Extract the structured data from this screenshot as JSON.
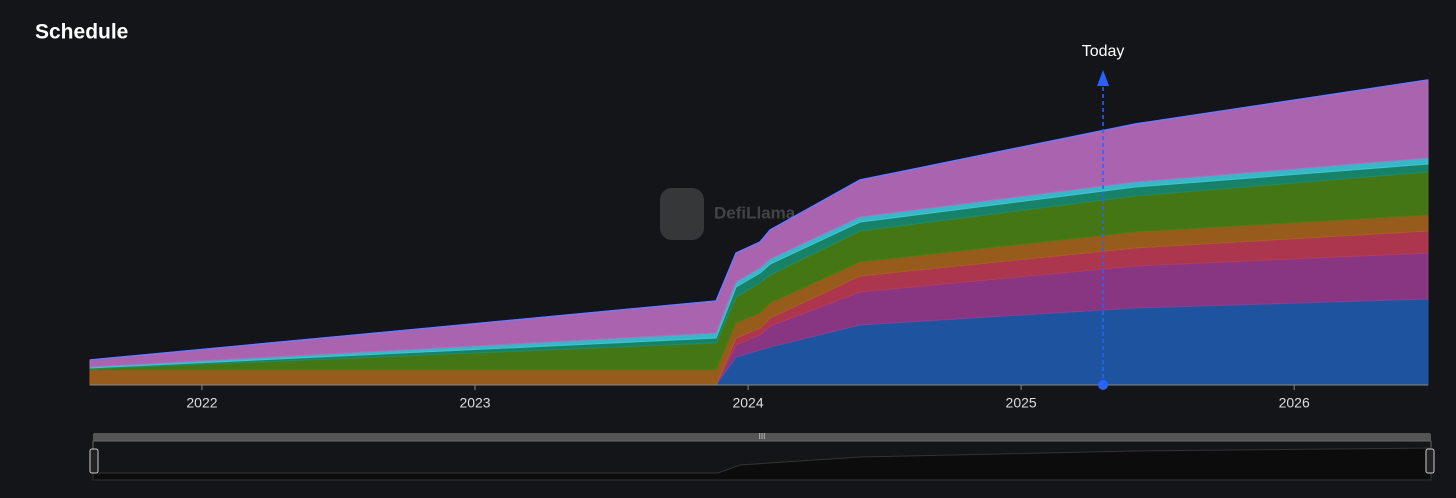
{
  "chart_data": {
    "type": "stacked-area",
    "title": "Schedule",
    "watermark": "DefiLlama",
    "x": [
      2021.59,
      2023.883,
      2023.956,
      2024.044,
      2024.081,
      2024.41,
      2025.418,
      2026.49
    ],
    "xlim": [
      2021.59,
      2026.49
    ],
    "xticks": [
      2022,
      2023,
      2024,
      2025,
      2026
    ],
    "ylim": [
      0,
      320
    ],
    "today": {
      "value": 2025.3,
      "label": "Today"
    },
    "series": [
      {
        "color": "#2059ad",
        "values": [
          0,
          0,
          28,
          35,
          38,
          60,
          77,
          86
        ]
      },
      {
        "color": "#933a8b",
        "values": [
          0,
          0,
          12,
          15,
          21,
          33,
          42,
          46
        ]
      },
      {
        "color": "#b83a52",
        "values": [
          0,
          0,
          7,
          7,
          8,
          16,
          18,
          22
        ]
      },
      {
        "color": "#a3621c",
        "values": [
          15,
          15,
          15,
          15,
          15,
          14,
          16,
          16
        ]
      },
      {
        "color": "#4a7f15",
        "values": [
          1,
          27,
          26,
          30,
          28,
          31,
          36,
          43
        ]
      },
      {
        "color": "#198c70",
        "values": [
          1,
          5,
          10,
          10,
          11,
          9,
          9,
          8
        ]
      },
      {
        "color": "#3cc6d8",
        "values": [
          1,
          5,
          5,
          5,
          5,
          5,
          5,
          6
        ]
      },
      {
        "color": "#b76bbd",
        "values": [
          7,
          32,
          29,
          26,
          29,
          37,
          58,
          78
        ]
      }
    ]
  }
}
